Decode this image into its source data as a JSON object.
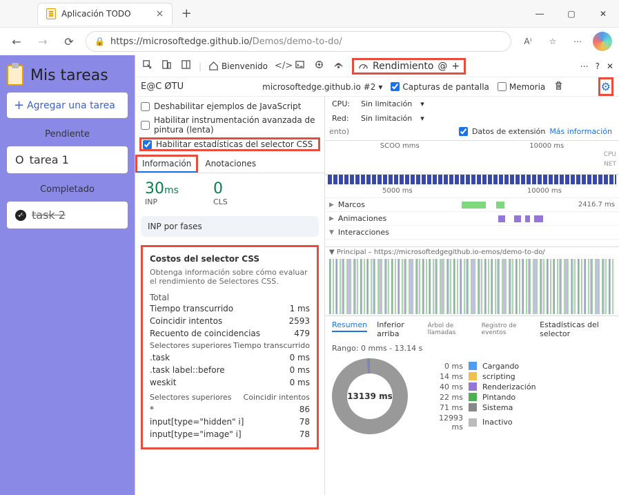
{
  "browser": {
    "tab_title": "Aplicación TODO",
    "url_host": "https://microsoftedge.github.io/",
    "url_path": "Demos/demo-to-do/"
  },
  "app": {
    "title": "Mis tareas",
    "add_btn": "Agregar una tarea",
    "pending_label": "Pendiente",
    "completed_label": "Completado",
    "task1": "tarea 1",
    "task2": "task 2"
  },
  "devtools": {
    "welcome": "Bienvenido",
    "perf_tab": "Rendimiento",
    "db_tag": "E@C ØTU",
    "target": "microsoftedge.github.io #2",
    "screenshots": "Capturas de pantalla",
    "memory": "Memoria",
    "opt_js": "Deshabilitar ejemplos de JavaScript",
    "opt_paint": "Habilitar instrumentación avanzada de pintura (lenta)",
    "opt_css": "Habilitar estadísticas del selector CSS",
    "opt_css_suffix": "ento)",
    "cpu_label": "CPU:",
    "cpu_val": "Sin limitación",
    "net_label": "Red:",
    "net_val": "Sin limitación",
    "ext_data": "Datos de extensión",
    "more_info": "Más información",
    "tab_info": "Información",
    "tab_annot": "Anotaciones",
    "inp_val": "30",
    "inp_unit": "ms",
    "inp_lbl": "INP",
    "cls_val": "0",
    "cls_lbl": "CLS",
    "inp_phases": "INP por fases"
  },
  "css": {
    "title": "Costos del selector CSS",
    "desc": "Obtenga información sobre cómo evaluar el rendimiento de Selectores CSS.",
    "total": "Total",
    "rows": [
      {
        "k": "Tiempo transcurrido",
        "v": "1 ms"
      },
      {
        "k": "Coincidir intentos",
        "v": "2593"
      },
      {
        "k": "Recuento de coincidencias",
        "v": "479"
      }
    ],
    "hdr1a": "Selectores superiores",
    "hdr1b": "Tiempo transcurrido",
    "sel_time": [
      {
        "k": ".task",
        "v": "0 ms"
      },
      {
        "k": ".task label::before",
        "v": "0 ms"
      },
      {
        "k": "weskit",
        "v": "0 ms"
      }
    ],
    "hdr2a": "Selectores superiores",
    "hdr2b": "Coincidir intentos",
    "sel_match": [
      {
        "k": "*",
        "v": "86"
      },
      {
        "k": "input[type=\"hidden\" i]",
        "v": "78"
      },
      {
        "k": "input[type=\"image\" i]",
        "v": "78"
      }
    ]
  },
  "timeline": {
    "ov_t1": "SCOO mms",
    "ov_t2": "10000 ms",
    "ruler_t1": "5000 ms",
    "ruler_t2": "10000 ms",
    "track_frames": "Marcos",
    "track_frames_time": "2416.7 ms",
    "track_anim": "Animaciones",
    "track_inter": "Interacciones",
    "main_label": "Principal – https://microsoftedgegithub.io-emos/demo-to-do/"
  },
  "bottom": {
    "tab_summary": "Resumen",
    "tab_bottomup": "Inferior arriba",
    "tab_calltree": "Árbol de llamadas",
    "tab_eventlog": "Registro de eventos",
    "tab_selstats": "Estadísticas del selector",
    "range": "Rango: 0 mms - 13.14 s",
    "donut_center": "13139 ms",
    "legend": [
      {
        "t": "0 ms",
        "c": "#4f9cf0",
        "l": "Cargando"
      },
      {
        "t": "14 ms",
        "c": "#f0c14f",
        "l": "scripting"
      },
      {
        "t": "40 ms",
        "c": "#9476d6",
        "l": "Renderización"
      },
      {
        "t": "22 ms",
        "c": "#4caf50",
        "l": "Pintando"
      },
      {
        "t": "71 ms",
        "c": "#888888",
        "l": "Sistema"
      },
      {
        "t": "12993 ms",
        "c": "#bbbbbb",
        "l": "Inactivo"
      }
    ]
  },
  "colors": {
    "frame_bar": "#7dd87d",
    "anim_bar": "#9476d6"
  }
}
